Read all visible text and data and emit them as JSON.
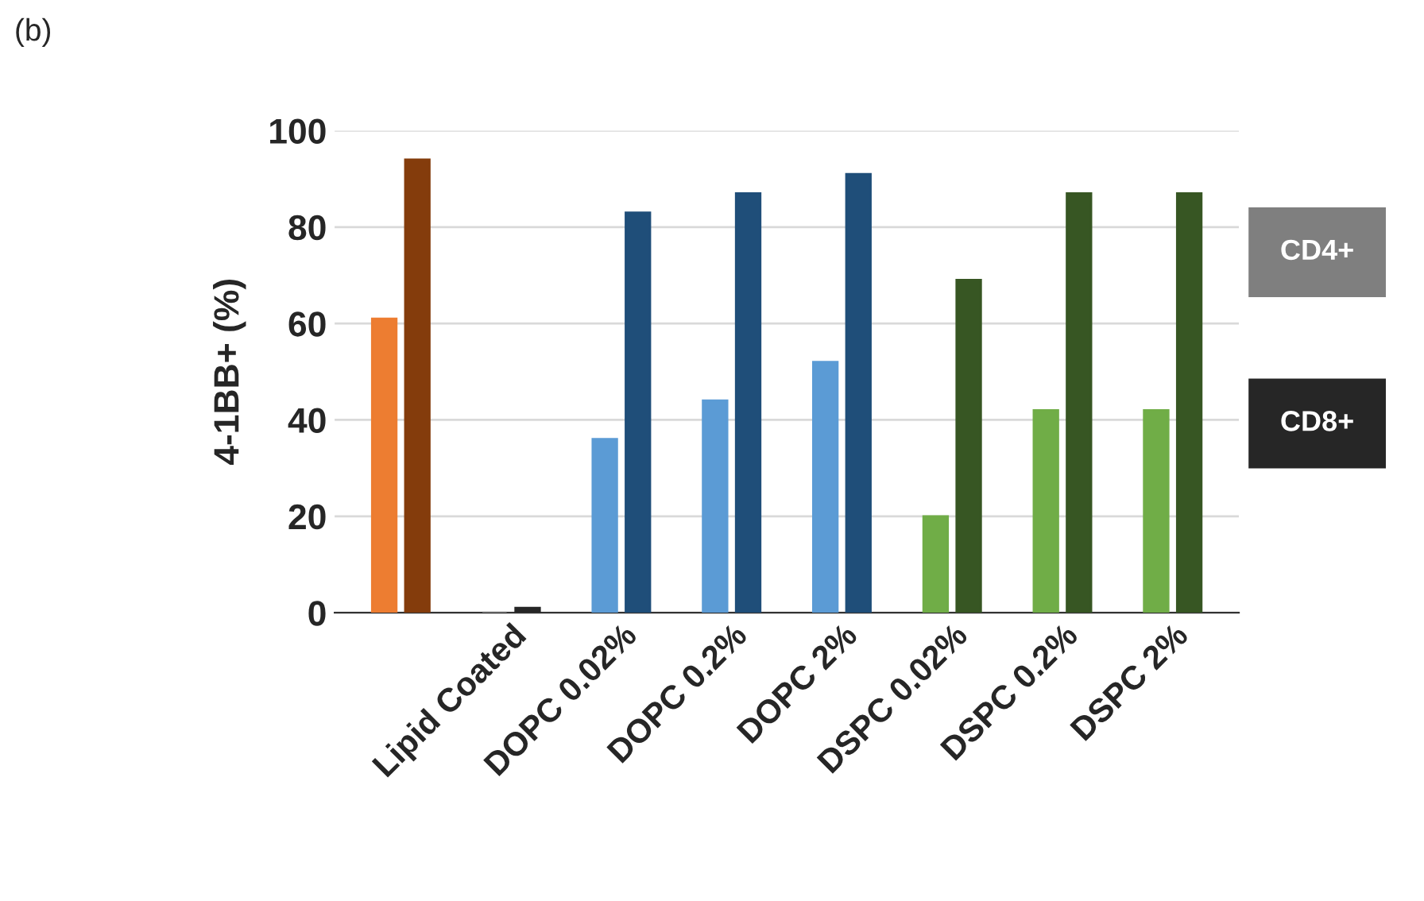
{
  "chart_data": {
    "type": "bar",
    "annotations": [
      "(b)"
    ],
    "ylabel": "4-1BB+ (%)",
    "categories": [
      null,
      "Lipid Coated",
      "DOPC 0.02%",
      "DOPC 0.2%",
      "DOPC 2%",
      "DSPC 0.02%",
      "DSPC 0.2%",
      "DSPC 2%"
    ],
    "series": [
      {
        "name": "CD4+",
        "colors": [
          "#ed7d31",
          "#7f7f7f",
          "#5b9bd5",
          "#5b9bd5",
          "#5b9bd5",
          "#70ad47",
          "#70ad47",
          "#70ad47"
        ],
        "values": [
          61,
          0,
          36,
          44,
          52,
          20,
          42,
          42
        ]
      },
      {
        "name": "CD8+",
        "colors": [
          "#843c0c",
          "#262626",
          "#1f4e79",
          "#1f4e79",
          "#1f4e79",
          "#375623",
          "#375623",
          "#375623"
        ],
        "values": [
          94,
          1,
          83,
          87,
          91,
          69,
          87,
          87
        ]
      }
    ],
    "ylim": [
      0,
      100
    ],
    "yticks": [
      0,
      20,
      40,
      60,
      80,
      100
    ],
    "grid": "y",
    "legend": "right"
  }
}
